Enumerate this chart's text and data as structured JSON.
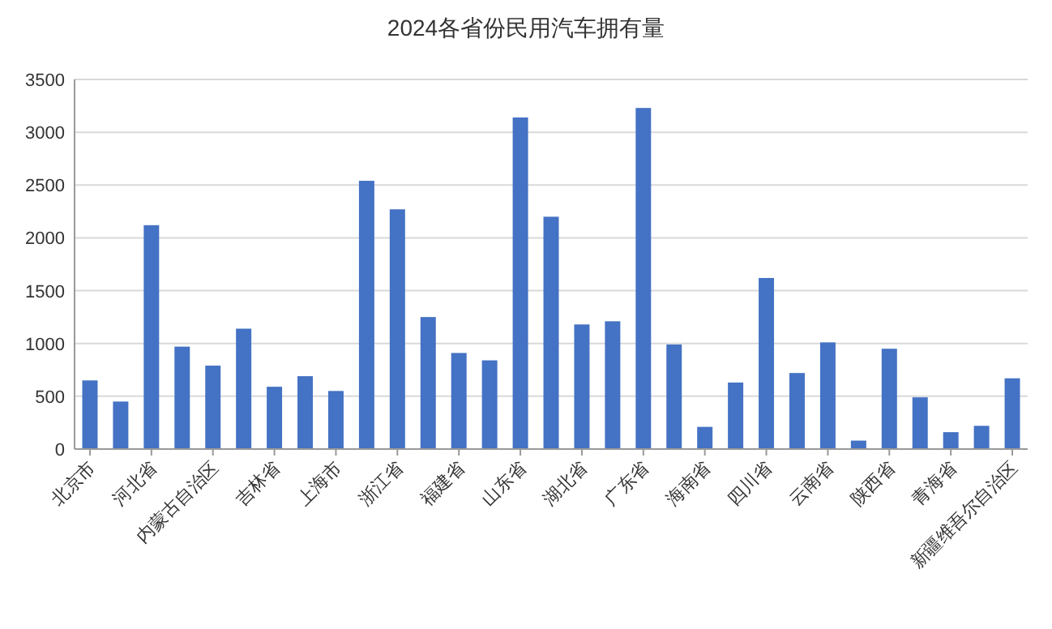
{
  "chart_data": {
    "type": "bar",
    "title": "2024各省份民用汽车拥有量",
    "categories": [
      "北京市",
      null,
      "河北省",
      null,
      "内蒙古自治区",
      null,
      "吉林省",
      null,
      "上海市",
      null,
      "浙江省",
      null,
      "福建省",
      null,
      "山东省",
      null,
      "湖北省",
      null,
      "广东省",
      null,
      "海南省",
      null,
      "四川省",
      null,
      "云南省",
      null,
      "陕西省",
      null,
      "青海省",
      null,
      "新疆维吾尔自治区"
    ],
    "values": [
      650,
      450,
      2120,
      970,
      790,
      1140,
      590,
      690,
      550,
      2540,
      2270,
      1250,
      910,
      840,
      3140,
      2200,
      1180,
      1210,
      3230,
      990,
      210,
      630,
      1620,
      720,
      1010,
      80,
      950,
      490,
      160,
      220,
      670
    ],
    "color": "#4472c4",
    "ylim": [
      0,
      3500
    ],
    "yticks": [
      0,
      500,
      1000,
      1500,
      2000,
      2500,
      3000,
      3500
    ],
    "grid": "y"
  }
}
